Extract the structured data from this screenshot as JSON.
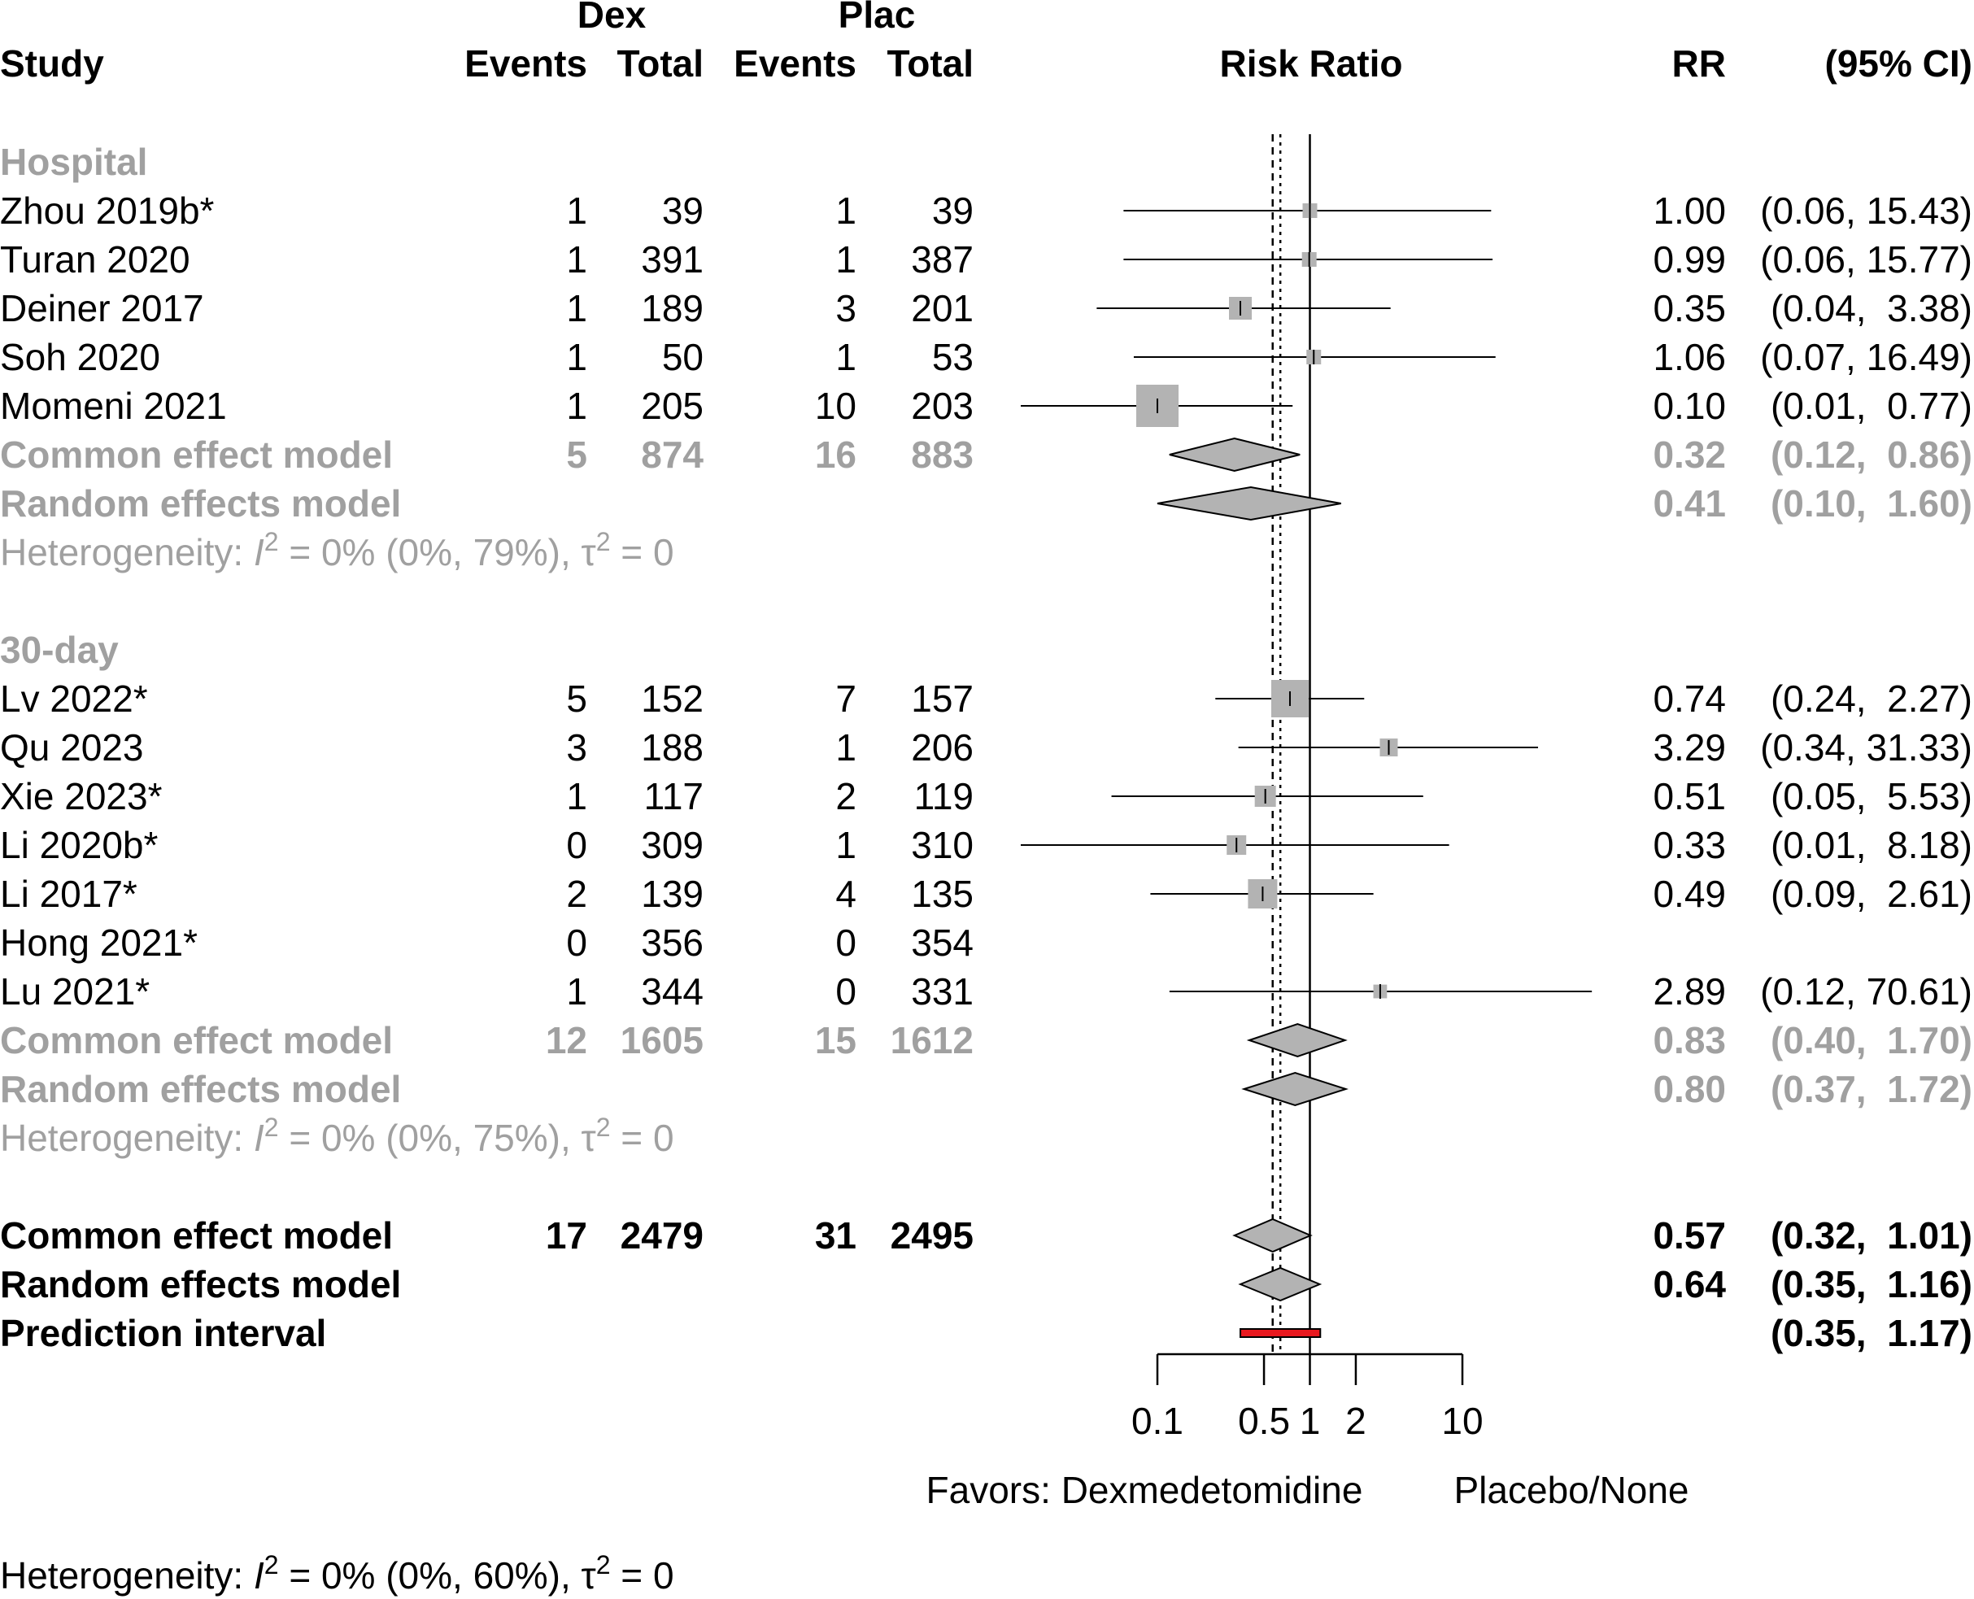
{
  "colors": {
    "text": "#000000",
    "subgroup_text": "#a0a0a0",
    "box": "#b3b3b3",
    "diamond": "#b3b3b3",
    "prediction": "#e8191f"
  },
  "header": {
    "group1": "Dex",
    "group2": "Plac",
    "study": "Study",
    "events1": "Events",
    "total1": "Total",
    "events2": "Events",
    "total2": "Total",
    "effect": "Risk Ratio",
    "rr": "RR",
    "ci": "(95% CI)"
  },
  "chart_data": {
    "type": "forest",
    "measure": "Risk Ratio",
    "scale": "log",
    "xlim": [
      0.1,
      10
    ],
    "ticks": [
      0.1,
      0.5,
      1,
      2,
      10
    ],
    "tick_labels": [
      "0.1",
      "0.5",
      "1",
      "2",
      "10"
    ],
    "reference_line": 1,
    "common_effect_line": 0.57,
    "random_effect_line": 0.64,
    "favors_left": "Favors: Dexmedetomidine",
    "favors_right": "Placebo/None",
    "overall_heterogeneity": "Heterogeneity: I² = 0% (0%, 60%), τ² = 0",
    "rows": [
      {
        "kind": "group",
        "label": "Hospital"
      },
      {
        "kind": "study",
        "label": "Zhou 2019b*",
        "e1": "1",
        "n1": "39",
        "e2": "1",
        "n2": "39",
        "rr": 1.0,
        "lo": 0.06,
        "hi": 15.43,
        "rr_text": "1.00",
        "ci_text": "(0.06, 15.43)",
        "weight": 0.15
      },
      {
        "kind": "study",
        "label": "Turan 2020",
        "e1": "1",
        "n1": "391",
        "e2": "1",
        "n2": "387",
        "rr": 0.99,
        "lo": 0.06,
        "hi": 15.77,
        "rr_text": "0.99",
        "ci_text": "(0.06, 15.77)",
        "weight": 0.15
      },
      {
        "kind": "study",
        "label": "Deiner 2017",
        "e1": "1",
        "n1": "189",
        "e2": "3",
        "n2": "201",
        "rr": 0.35,
        "lo": 0.04,
        "hi": 3.38,
        "rr_text": "0.35",
        "ci_text": "(0.04,  3.38)",
        "weight": 0.4
      },
      {
        "kind": "study",
        "label": "Soh 2020",
        "e1": "1",
        "n1": "50",
        "e2": "1",
        "n2": "53",
        "rr": 1.06,
        "lo": 0.07,
        "hi": 16.49,
        "rr_text": "1.06",
        "ci_text": "(0.07, 16.49)",
        "weight": 0.15
      },
      {
        "kind": "study",
        "label": "Momeni 2021",
        "e1": "1",
        "n1": "205",
        "e2": "10",
        "n2": "203",
        "rr": 0.1,
        "lo": 0.01,
        "hi": 0.77,
        "rr_text": "0.10",
        "ci_text": "(0.01,  0.77)",
        "weight": 1.0,
        "arrow_left": true
      },
      {
        "kind": "common",
        "label": "Common effect model",
        "e1": "5",
        "n1": "874",
        "e2": "16",
        "n2": "883",
        "rr": 0.32,
        "lo": 0.12,
        "hi": 0.86,
        "rr_text": "0.32",
        "ci_text": "(0.12,  0.86)",
        "style": "subgroup"
      },
      {
        "kind": "random",
        "label": "Random effects model",
        "rr": 0.41,
        "lo": 0.1,
        "hi": 1.6,
        "rr_text": "0.41",
        "ci_text": "(0.10,  1.60)",
        "style": "subgroup"
      },
      {
        "kind": "het",
        "label": "Heterogeneity: I² = 0% (0%, 79%), τ² = 0"
      },
      {
        "kind": "blank"
      },
      {
        "kind": "group",
        "label": "30-day"
      },
      {
        "kind": "study",
        "label": "Lv 2022*",
        "e1": "5",
        "n1": "152",
        "e2": "7",
        "n2": "157",
        "rr": 0.74,
        "lo": 0.24,
        "hi": 2.27,
        "rr_text": "0.74",
        "ci_text": "(0.24,  2.27)",
        "weight": 0.85
      },
      {
        "kind": "study",
        "label": "Qu 2023",
        "e1": "3",
        "n1": "188",
        "e2": "1",
        "n2": "206",
        "rr": 3.29,
        "lo": 0.34,
        "hi": 31.33,
        "rr_text": "3.29",
        "ci_text": "(0.34, 31.33)",
        "weight": 0.25
      },
      {
        "kind": "study",
        "label": "Xie 2023*",
        "e1": "1",
        "n1": "117",
        "e2": "2",
        "n2": "119",
        "rr": 0.51,
        "lo": 0.05,
        "hi": 5.53,
        "rr_text": "0.51",
        "ci_text": "(0.05,  5.53)",
        "weight": 0.35
      },
      {
        "kind": "study",
        "label": "Li 2020b*",
        "e1": "0",
        "n1": "309",
        "e2": "1",
        "n2": "310",
        "rr": 0.33,
        "lo": 0.01,
        "hi": 8.18,
        "rr_text": "0.33",
        "ci_text": "(0.01,  8.18)",
        "weight": 0.3
      },
      {
        "kind": "study",
        "label": "Li 2017*",
        "e1": "2",
        "n1": "139",
        "e2": "4",
        "n2": "135",
        "rr": 0.49,
        "lo": 0.09,
        "hi": 2.61,
        "rr_text": "0.49",
        "ci_text": "(0.09,  2.61)",
        "weight": 0.6
      },
      {
        "kind": "study",
        "label": "Hong 2021*",
        "e1": "0",
        "n1": "356",
        "e2": "0",
        "n2": "354",
        "rr_text": "",
        "ci_text": ""
      },
      {
        "kind": "study",
        "label": "Lu 2021*",
        "e1": "1",
        "n1": "344",
        "e2": "0",
        "n2": "331",
        "rr": 2.89,
        "lo": 0.12,
        "hi": 70.61,
        "rr_text": "2.89",
        "ci_text": "(0.12, 70.61)",
        "weight": 0.12
      },
      {
        "kind": "common",
        "label": "Common effect model",
        "e1": "12",
        "n1": "1605",
        "e2": "15",
        "n2": "1612",
        "rr": 0.83,
        "lo": 0.4,
        "hi": 1.7,
        "rr_text": "0.83",
        "ci_text": "(0.40,  1.70)",
        "style": "subgroup"
      },
      {
        "kind": "random",
        "label": "Random effects model",
        "rr": 0.8,
        "lo": 0.37,
        "hi": 1.72,
        "rr_text": "0.80",
        "ci_text": "(0.37,  1.72)",
        "style": "subgroup"
      },
      {
        "kind": "het",
        "label": "Heterogeneity: I² = 0% (0%, 75%), τ² = 0"
      },
      {
        "kind": "blank"
      },
      {
        "kind": "common",
        "label": "Common effect model",
        "e1": "17",
        "n1": "2479",
        "e2": "31",
        "n2": "2495",
        "rr": 0.57,
        "lo": 0.32,
        "hi": 1.01,
        "rr_text": "0.57",
        "ci_text": "(0.32,  1.01)",
        "style": "overall"
      },
      {
        "kind": "random",
        "label": "Random effects model",
        "rr": 0.64,
        "lo": 0.35,
        "hi": 1.16,
        "rr_text": "0.64",
        "ci_text": "(0.35,  1.16)",
        "style": "overall"
      },
      {
        "kind": "prediction",
        "label": "Prediction interval",
        "lo": 0.35,
        "hi": 1.17,
        "rr_text": "",
        "ci_text": "(0.35,  1.17)",
        "style": "overall"
      }
    ]
  }
}
